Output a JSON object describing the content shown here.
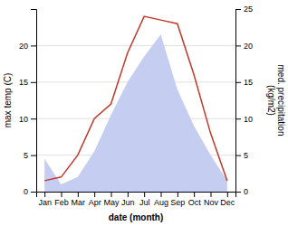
{
  "chart_data": {
    "type": "line",
    "categories": [
      "Jan",
      "Feb",
      "Mar",
      "Apr",
      "May",
      "Jun",
      "Jul",
      "Aug",
      "Sep",
      "Oct",
      "Nov",
      "Dec"
    ],
    "series": [
      {
        "type": "area",
        "axis": "y2",
        "color": "#c5cdf0",
        "values": [
          4.5,
          1.0,
          2.0,
          5.5,
          10.5,
          15.0,
          18.5,
          21.5,
          14.0,
          9.0,
          5.0,
          1.5
        ]
      },
      {
        "type": "line",
        "color": "#c0392b",
        "values": [
          1.5,
          2.0,
          5.0,
          10.0,
          12.0,
          19.0,
          24.0,
          23.5,
          23.0,
          16.0,
          8.0,
          1.5
        ]
      }
    ],
    "xlabel": "date (month)",
    "ylabel": "max temp (C)",
    "y2label": "med. precipitation\n(kg/m2)",
    "ylim": [
      0,
      25
    ],
    "yticks": [
      0,
      5,
      10,
      15,
      20
    ],
    "y2lim": [
      0,
      25
    ],
    "y2ticks": [
      0,
      5,
      10,
      15,
      20,
      25
    ],
    "grid": true
  }
}
